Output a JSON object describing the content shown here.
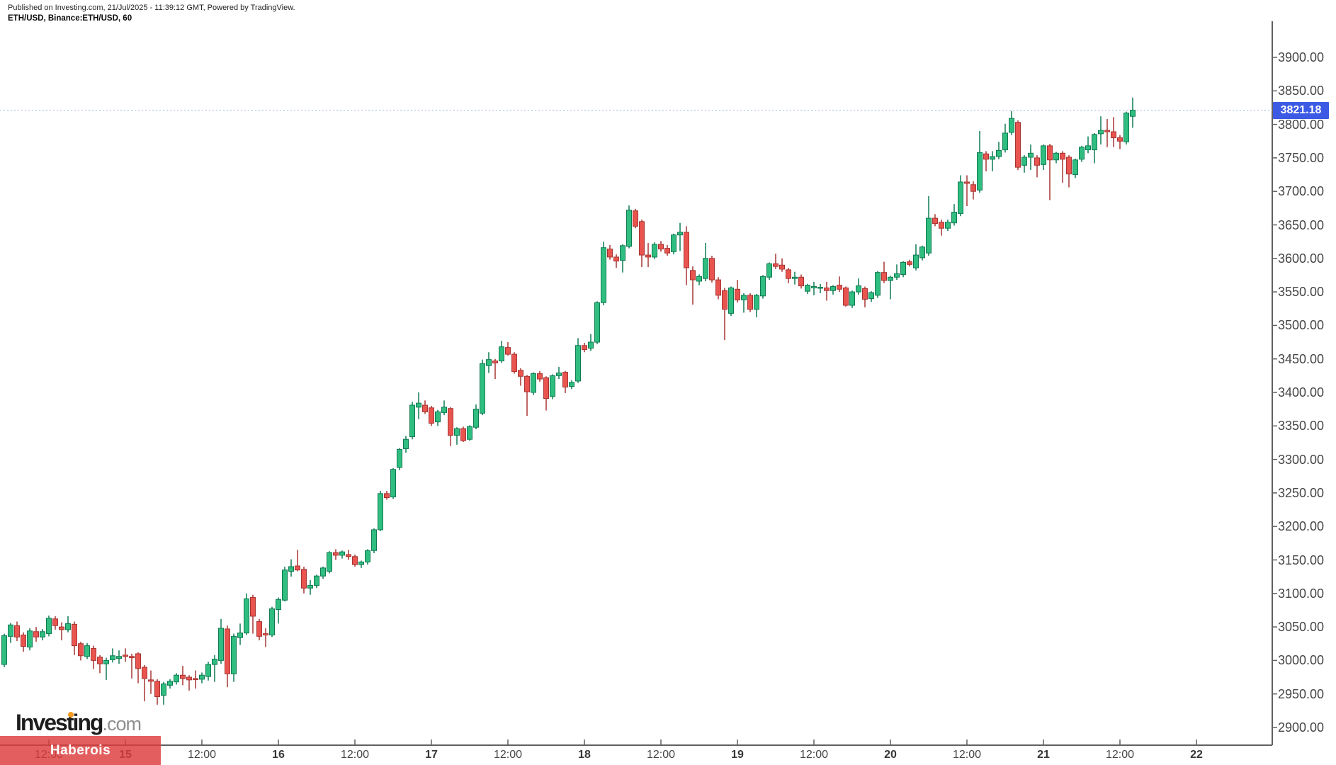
{
  "header": {
    "published_line": "Published on Investing.com, 21/Jul/2025 - 11:39:12 GMT, Powered by TradingView.",
    "symbol_line": "ETH/USD, Binance:ETH/USD, 60"
  },
  "watermark": {
    "brand": "Investing",
    "suffix": ".com"
  },
  "banner": {
    "label": "Haberois",
    "color": "#DD3C3C"
  },
  "price_badge": {
    "value": "3821.18",
    "color": "#3D5AE5"
  },
  "chart_data": {
    "type": "candlestick",
    "title": "ETH/USD, Binance:ETH/USD, 60",
    "symbol": "ETH/USD",
    "exchange": "Binance",
    "interval_minutes": 60,
    "start_time": "2025-07-14 05:00",
    "last_price": 3821.18,
    "grid": "off",
    "y_axis": {
      "min": 2900,
      "max": 3900,
      "step": 50,
      "decimals": 2,
      "side": "right"
    },
    "x_ticks": [
      {
        "label": "12:00",
        "idx": 7,
        "major": false
      },
      {
        "label": "15",
        "idx": 19,
        "major": true
      },
      {
        "label": "12:00",
        "idx": 31,
        "major": false
      },
      {
        "label": "16",
        "idx": 43,
        "major": true
      },
      {
        "label": "12:00",
        "idx": 55,
        "major": false
      },
      {
        "label": "17",
        "idx": 67,
        "major": true
      },
      {
        "label": "12:00",
        "idx": 79,
        "major": false
      },
      {
        "label": "18",
        "idx": 91,
        "major": true
      },
      {
        "label": "12:00",
        "idx": 103,
        "major": false
      },
      {
        "label": "19",
        "idx": 115,
        "major": true
      },
      {
        "label": "12:00",
        "idx": 127,
        "major": false
      },
      {
        "label": "20",
        "idx": 139,
        "major": true
      },
      {
        "label": "12:00",
        "idx": 151,
        "major": false
      },
      {
        "label": "21",
        "idx": 163,
        "major": true
      },
      {
        "label": "12:00",
        "idx": 175,
        "major": false
      },
      {
        "label": "22",
        "idx": 187,
        "major": true
      }
    ],
    "colors": {
      "up_fill": "#30BD80",
      "up_border": "#0E7A52",
      "down_fill": "#E9544F",
      "down_border": "#A63532",
      "axis": "#616161",
      "label": "#454545",
      "price_line": "#A8B8EA",
      "badge": "#3D5AE5"
    },
    "ohlc": [
      [
        2994,
        3040,
        2990,
        3037
      ],
      [
        3036,
        3056,
        3026,
        3053
      ],
      [
        3052,
        3058,
        3029,
        3035
      ],
      [
        3038,
        3042,
        3013,
        3021
      ],
      [
        3020,
        3048,
        3015,
        3044
      ],
      [
        3043,
        3050,
        3028,
        3035
      ],
      [
        3035,
        3047,
        3030,
        3043
      ],
      [
        3040,
        3067,
        3036,
        3063
      ],
      [
        3062,
        3066,
        3046,
        3052
      ],
      [
        3050,
        3057,
        3030,
        3046
      ],
      [
        3046,
        3066,
        3042,
        3055
      ],
      [
        3054,
        3058,
        3008,
        3022
      ],
      [
        3025,
        3028,
        3000,
        3007
      ],
      [
        3006,
        3026,
        3002,
        3022
      ],
      [
        3018,
        3022,
        2987,
        3000
      ],
      [
        3005,
        3008,
        2981,
        2995
      ],
      [
        2995,
        3004,
        2971,
        3000
      ],
      [
        3001,
        3018,
        2997,
        3007
      ],
      [
        3003,
        3015,
        2995,
        3006
      ],
      [
        3008,
        3018,
        2998,
        3006
      ],
      [
        3006,
        3010,
        2973,
        3004
      ],
      [
        3010,
        3012,
        2966,
        2988
      ],
      [
        2990,
        2993,
        2939,
        2973
      ],
      [
        2971,
        2985,
        2950,
        2969
      ],
      [
        2969,
        2972,
        2934,
        2946
      ],
      [
        2948,
        2968,
        2934,
        2965
      ],
      [
        2963,
        2972,
        2958,
        2969
      ],
      [
        2968,
        2981,
        2964,
        2978
      ],
      [
        2978,
        2992,
        2963,
        2973
      ],
      [
        2975,
        2978,
        2955,
        2971
      ],
      [
        2973,
        2985,
        2958,
        2972
      ],
      [
        2972,
        2982,
        2966,
        2978
      ],
      [
        2976,
        2998,
        2970,
        2994
      ],
      [
        2994,
        3008,
        2968,
        3002
      ],
      [
        3000,
        3062,
        2995,
        3048
      ],
      [
        3047,
        3052,
        2960,
        2980
      ],
      [
        2980,
        3040,
        2968,
        3036
      ],
      [
        3034,
        3055,
        3023,
        3041
      ],
      [
        3041,
        3100,
        3038,
        3092
      ],
      [
        3094,
        3098,
        3040,
        3066
      ],
      [
        3058,
        3062,
        3030,
        3036
      ],
      [
        3040,
        3048,
        3020,
        3038
      ],
      [
        3038,
        3080,
        3035,
        3077
      ],
      [
        3076,
        3094,
        3055,
        3091
      ],
      [
        3090,
        3140,
        3088,
        3135
      ],
      [
        3133,
        3151,
        3125,
        3140
      ],
      [
        3141,
        3165,
        3133,
        3135
      ],
      [
        3136,
        3140,
        3100,
        3108
      ],
      [
        3108,
        3120,
        3098,
        3112
      ],
      [
        3112,
        3128,
        3108,
        3126
      ],
      [
        3126,
        3140,
        3122,
        3138
      ],
      [
        3133,
        3163,
        3130,
        3161
      ],
      [
        3161,
        3166,
        3150,
        3157
      ],
      [
        3157,
        3164,
        3152,
        3162
      ],
      [
        3158,
        3165,
        3150,
        3155
      ],
      [
        3155,
        3158,
        3140,
        3143
      ],
      [
        3143,
        3149,
        3138,
        3147
      ],
      [
        3147,
        3166,
        3143,
        3164
      ],
      [
        3164,
        3197,
        3160,
        3195
      ],
      [
        3195,
        3253,
        3193,
        3249
      ],
      [
        3249,
        3253,
        3240,
        3243
      ],
      [
        3244,
        3287,
        3241,
        3285
      ],
      [
        3288,
        3317,
        3284,
        3315
      ],
      [
        3316,
        3335,
        3310,
        3330
      ],
      [
        3334,
        3386,
        3330,
        3381
      ],
      [
        3378,
        3400,
        3360,
        3384
      ],
      [
        3381,
        3388,
        3368,
        3371
      ],
      [
        3377,
        3380,
        3350,
        3354
      ],
      [
        3356,
        3374,
        3350,
        3371
      ],
      [
        3370,
        3388,
        3366,
        3378
      ],
      [
        3376,
        3378,
        3320,
        3336
      ],
      [
        3336,
        3348,
        3322,
        3346
      ],
      [
        3346,
        3349,
        3326,
        3328
      ],
      [
        3330,
        3351,
        3328,
        3349
      ],
      [
        3348,
        3382,
        3345,
        3375
      ],
      [
        3369,
        3449,
        3366,
        3443
      ],
      [
        3440,
        3460,
        3429,
        3449
      ],
      [
        3447,
        3450,
        3420,
        3444
      ],
      [
        3447,
        3477,
        3444,
        3468
      ],
      [
        3467,
        3475,
        3455,
        3457
      ],
      [
        3457,
        3460,
        3428,
        3431
      ],
      [
        3433,
        3436,
        3410,
        3424
      ],
      [
        3424,
        3426,
        3365,
        3401
      ],
      [
        3400,
        3430,
        3396,
        3428
      ],
      [
        3428,
        3432,
        3416,
        3420
      ],
      [
        3422,
        3424,
        3373,
        3391
      ],
      [
        3394,
        3427,
        3390,
        3425
      ],
      [
        3425,
        3438,
        3420,
        3429
      ],
      [
        3430,
        3432,
        3399,
        3408
      ],
      [
        3409,
        3418,
        3405,
        3415
      ],
      [
        3417,
        3481,
        3414,
        3470
      ],
      [
        3470,
        3474,
        3460,
        3464
      ],
      [
        3466,
        3487,
        3462,
        3475
      ],
      [
        3475,
        3536,
        3472,
        3534
      ],
      [
        3534,
        3625,
        3530,
        3616
      ],
      [
        3614,
        3620,
        3598,
        3602
      ],
      [
        3602,
        3606,
        3586,
        3596
      ],
      [
        3597,
        3621,
        3579,
        3619
      ],
      [
        3618,
        3679,
        3615,
        3672
      ],
      [
        3671,
        3674,
        3645,
        3648
      ],
      [
        3655,
        3658,
        3587,
        3605
      ],
      [
        3605,
        3623,
        3587,
        3602
      ],
      [
        3602,
        3624,
        3599,
        3621
      ],
      [
        3621,
        3626,
        3610,
        3614
      ],
      [
        3615,
        3620,
        3604,
        3608
      ],
      [
        3610,
        3637,
        3606,
        3635
      ],
      [
        3635,
        3653,
        3611,
        3639
      ],
      [
        3639,
        3648,
        3560,
        3586
      ],
      [
        3582,
        3588,
        3531,
        3568
      ],
      [
        3566,
        3576,
        3560,
        3573
      ],
      [
        3570,
        3623,
        3566,
        3600
      ],
      [
        3600,
        3604,
        3564,
        3568
      ],
      [
        3568,
        3572,
        3539,
        3545
      ],
      [
        3552,
        3556,
        3478,
        3524
      ],
      [
        3518,
        3558,
        3514,
        3556
      ],
      [
        3554,
        3568,
        3534,
        3538
      ],
      [
        3538,
        3548,
        3519,
        3545
      ],
      [
        3545,
        3548,
        3520,
        3524
      ],
      [
        3524,
        3547,
        3512,
        3545
      ],
      [
        3544,
        3575,
        3540,
        3573
      ],
      [
        3572,
        3594,
        3568,
        3592
      ],
      [
        3592,
        3607,
        3584,
        3588
      ],
      [
        3590,
        3600,
        3580,
        3584
      ],
      [
        3583,
        3586,
        3563,
        3570
      ],
      [
        3570,
        3580,
        3561,
        3572
      ],
      [
        3572,
        3576,
        3555,
        3559
      ],
      [
        3551,
        3562,
        3547,
        3560
      ],
      [
        3556,
        3565,
        3545,
        3558
      ],
      [
        3556,
        3562,
        3548,
        3557
      ],
      [
        3556,
        3565,
        3537,
        3552
      ],
      [
        3552,
        3560,
        3546,
        3558
      ],
      [
        3560,
        3573,
        3550,
        3554
      ],
      [
        3556,
        3558,
        3528,
        3530
      ],
      [
        3530,
        3552,
        3526,
        3550
      ],
      [
        3550,
        3570,
        3546,
        3559
      ],
      [
        3555,
        3558,
        3527,
        3539
      ],
      [
        3540,
        3551,
        3535,
        3549
      ],
      [
        3545,
        3581,
        3541,
        3579
      ],
      [
        3579,
        3595,
        3563,
        3567
      ],
      [
        3567,
        3574,
        3539,
        3572
      ],
      [
        3572,
        3591,
        3568,
        3577
      ],
      [
        3576,
        3596,
        3572,
        3594
      ],
      [
        3595,
        3598,
        3588,
        3591
      ],
      [
        3586,
        3621,
        3582,
        3605
      ],
      [
        3601,
        3619,
        3597,
        3617
      ],
      [
        3608,
        3693,
        3604,
        3660
      ],
      [
        3660,
        3666,
        3648,
        3652
      ],
      [
        3654,
        3658,
        3634,
        3645
      ],
      [
        3645,
        3658,
        3641,
        3654
      ],
      [
        3653,
        3681,
        3649,
        3669
      ],
      [
        3667,
        3724,
        3663,
        3714
      ],
      [
        3714,
        3724,
        3678,
        3712
      ],
      [
        3710,
        3715,
        3688,
        3700
      ],
      [
        3702,
        3790,
        3698,
        3758
      ],
      [
        3756,
        3760,
        3730,
        3748
      ],
      [
        3748,
        3760,
        3730,
        3752
      ],
      [
        3752,
        3774,
        3748,
        3761
      ],
      [
        3762,
        3801,
        3758,
        3787
      ],
      [
        3788,
        3820,
        3784,
        3809
      ],
      [
        3803,
        3806,
        3732,
        3736
      ],
      [
        3739,
        3754,
        3728,
        3751
      ],
      [
        3751,
        3770,
        3732,
        3757
      ],
      [
        3750,
        3754,
        3721,
        3739
      ],
      [
        3740,
        3770,
        3732,
        3768
      ],
      [
        3768,
        3771,
        3687,
        3747
      ],
      [
        3747,
        3759,
        3742,
        3757
      ],
      [
        3757,
        3760,
        3713,
        3748
      ],
      [
        3751,
        3754,
        3706,
        3726
      ],
      [
        3725,
        3749,
        3720,
        3747
      ],
      [
        3748,
        3768,
        3744,
        3766
      ],
      [
        3762,
        3782,
        3757,
        3768
      ],
      [
        3762,
        3787,
        3742,
        3785
      ],
      [
        3786,
        3812,
        3770,
        3791
      ],
      [
        3791,
        3808,
        3766,
        3789
      ],
      [
        3789,
        3811,
        3766,
        3780
      ],
      [
        3780,
        3784,
        3763,
        3775
      ],
      [
        3774,
        3819,
        3770,
        3817
      ],
      [
        3812,
        3840,
        3795,
        3821.18
      ]
    ]
  }
}
